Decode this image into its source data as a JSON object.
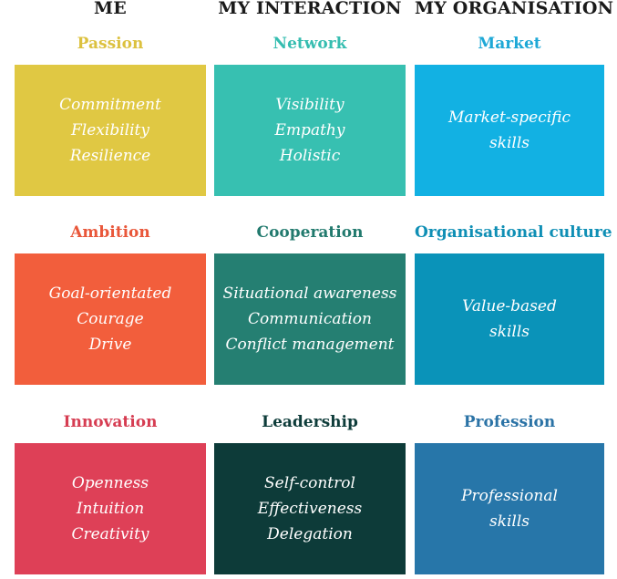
{
  "columns": [
    "ME",
    "MY INTERACTION",
    "MY ORGANISATION"
  ],
  "cells": [
    {
      "title": "Passion",
      "title_color": "#dcc13f",
      "box_color": "#e0c843",
      "lines": [
        "Commitment",
        "Flexibility",
        "Resilience"
      ]
    },
    {
      "title": "Network",
      "title_color": "#35bdb0",
      "box_color": "#37c0b1",
      "lines": [
        "Visibility",
        "Empathy",
        "Holistic"
      ]
    },
    {
      "title": "Market",
      "title_color": "#1ea8d6",
      "box_color": "#12b1e3",
      "lines": [
        "Market-specific",
        "skills"
      ]
    },
    {
      "title": "Ambition",
      "title_color": "#e9573a",
      "box_color": "#f25e3c",
      "lines": [
        "Goal-orientated",
        "Courage",
        "Drive"
      ]
    },
    {
      "title": "Cooperation",
      "title_color": "#227a6e",
      "box_color": "#257f72",
      "lines": [
        "Situational awareness",
        "Communication",
        "Conflict management"
      ]
    },
    {
      "title": "Organisational culture",
      "title_color": "#0f8fb5",
      "box_color": "#0a93b9",
      "lines": [
        "Value-based",
        "skills"
      ]
    },
    {
      "title": "Innovation",
      "title_color": "#d63d52",
      "box_color": "#de4057",
      "lines": [
        "Openness",
        "Intuition",
        "Creativity"
      ]
    },
    {
      "title": "Leadership",
      "title_color": "#0e3c3a",
      "box_color": "#0d3b39",
      "lines": [
        "Self-control",
        "Effectiveness",
        "Delegation"
      ]
    },
    {
      "title": "Profession",
      "title_color": "#2b73a6",
      "box_color": "#2776a9",
      "lines": [
        "Professional",
        "skills"
      ]
    }
  ]
}
